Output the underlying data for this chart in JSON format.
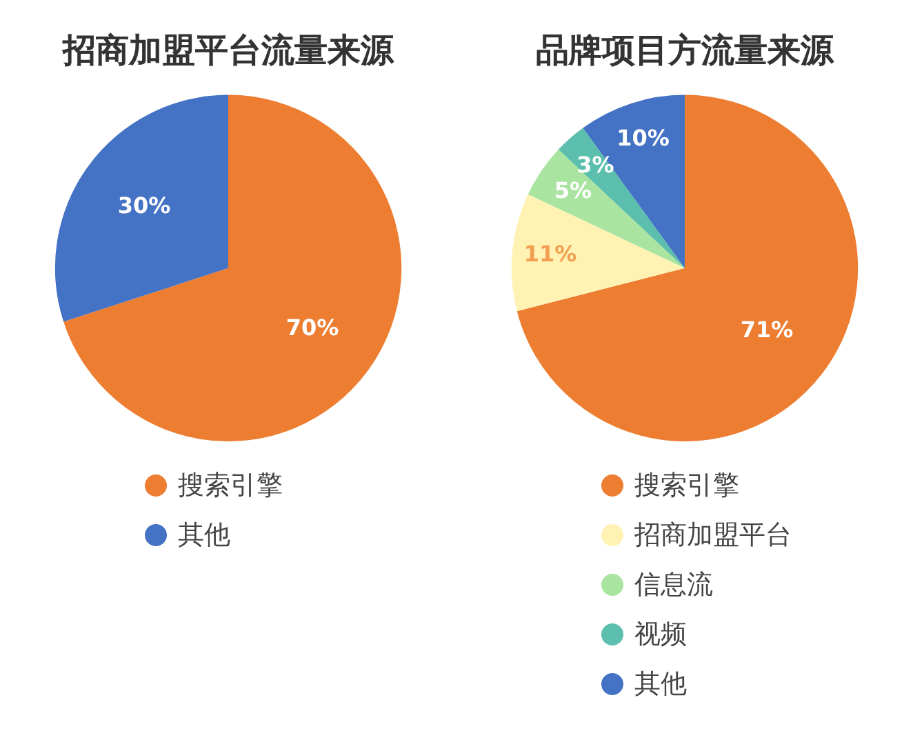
{
  "chart_data": [
    {
      "type": "pie",
      "title": "招商加盟平台流量来源",
      "categories": [
        "搜索引擎",
        "其他"
      ],
      "values": [
        70,
        30
      ],
      "colors": [
        "#ed7d31",
        "#4472c4"
      ],
      "value_labels": [
        "70%",
        "30%"
      ],
      "legend": "bottom"
    },
    {
      "type": "pie",
      "title": "品牌项目方流量来源",
      "categories": [
        "搜索引擎",
        "招商加盟平台",
        "信息流",
        "视频",
        "其他"
      ],
      "values": [
        71,
        11,
        5,
        3,
        10
      ],
      "colors": [
        "#ed7d31",
        "#fff2b3",
        "#a9e5a0",
        "#5cbfad",
        "#4472c4"
      ],
      "value_labels": [
        "71%",
        "11%",
        "5%",
        "3%",
        "10%"
      ],
      "legend": "bottom"
    }
  ]
}
